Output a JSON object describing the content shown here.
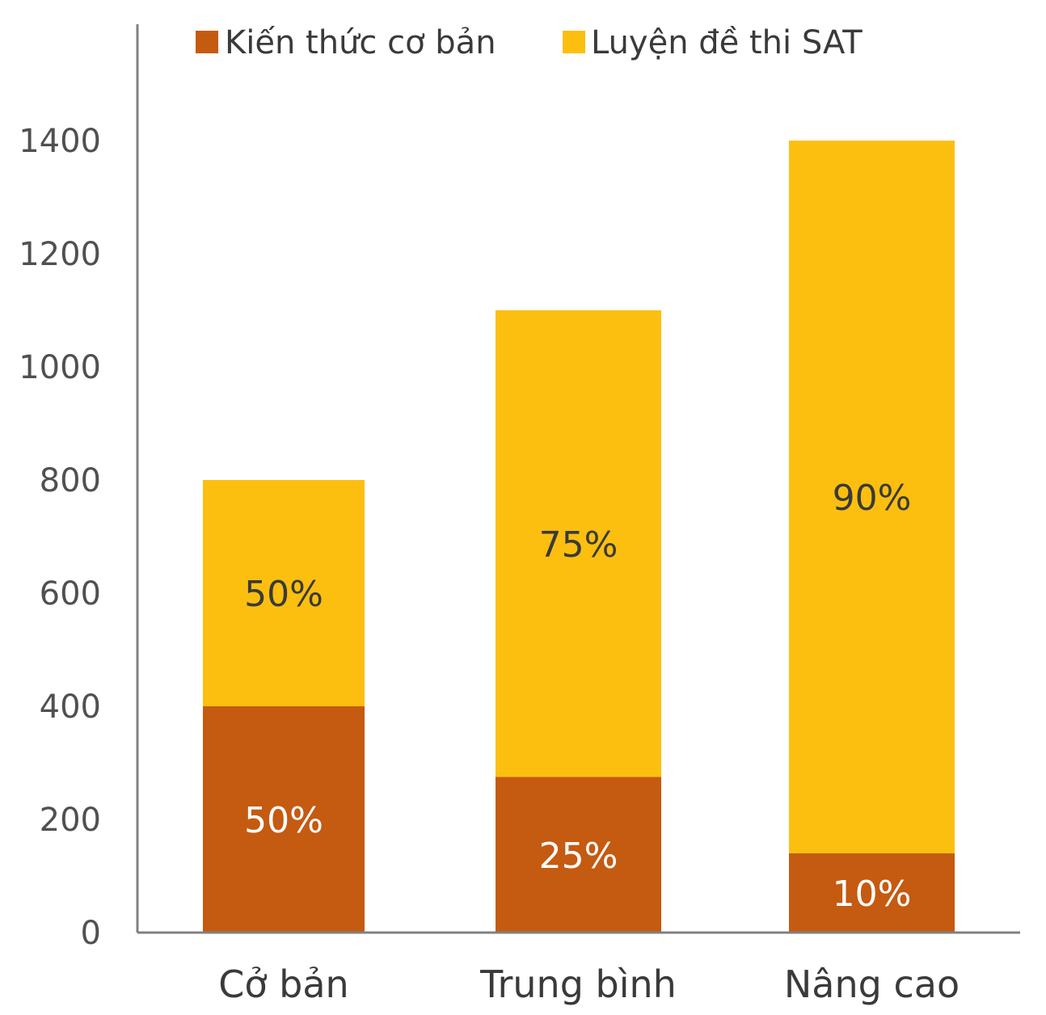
{
  "colors": {
    "series_base": "#C55A11",
    "series_sat": "#FCBF10",
    "axis": "#808080",
    "label_dark": "#3a3a3a",
    "label_light": "#ffffff"
  },
  "chart_data": {
    "type": "bar",
    "stacked": true,
    "categories": [
      "Cở bản",
      "Trung bình",
      "Nâng cao"
    ],
    "series": [
      {
        "name": "Kiến thức cơ bản",
        "values": [
          400,
          275,
          140
        ],
        "labels": [
          "50%",
          "25%",
          "10%"
        ]
      },
      {
        "name": "Luyện đề thi SAT",
        "values": [
          400,
          825,
          1260
        ],
        "labels": [
          "50%",
          "75%",
          "90%"
        ]
      }
    ],
    "title": "",
    "xlabel": "",
    "ylabel": "",
    "ylim": [
      0,
      1600
    ],
    "yticks": [
      0,
      200,
      400,
      600,
      800,
      1000,
      1200,
      1400
    ],
    "grid": false,
    "legend_position": "top"
  }
}
